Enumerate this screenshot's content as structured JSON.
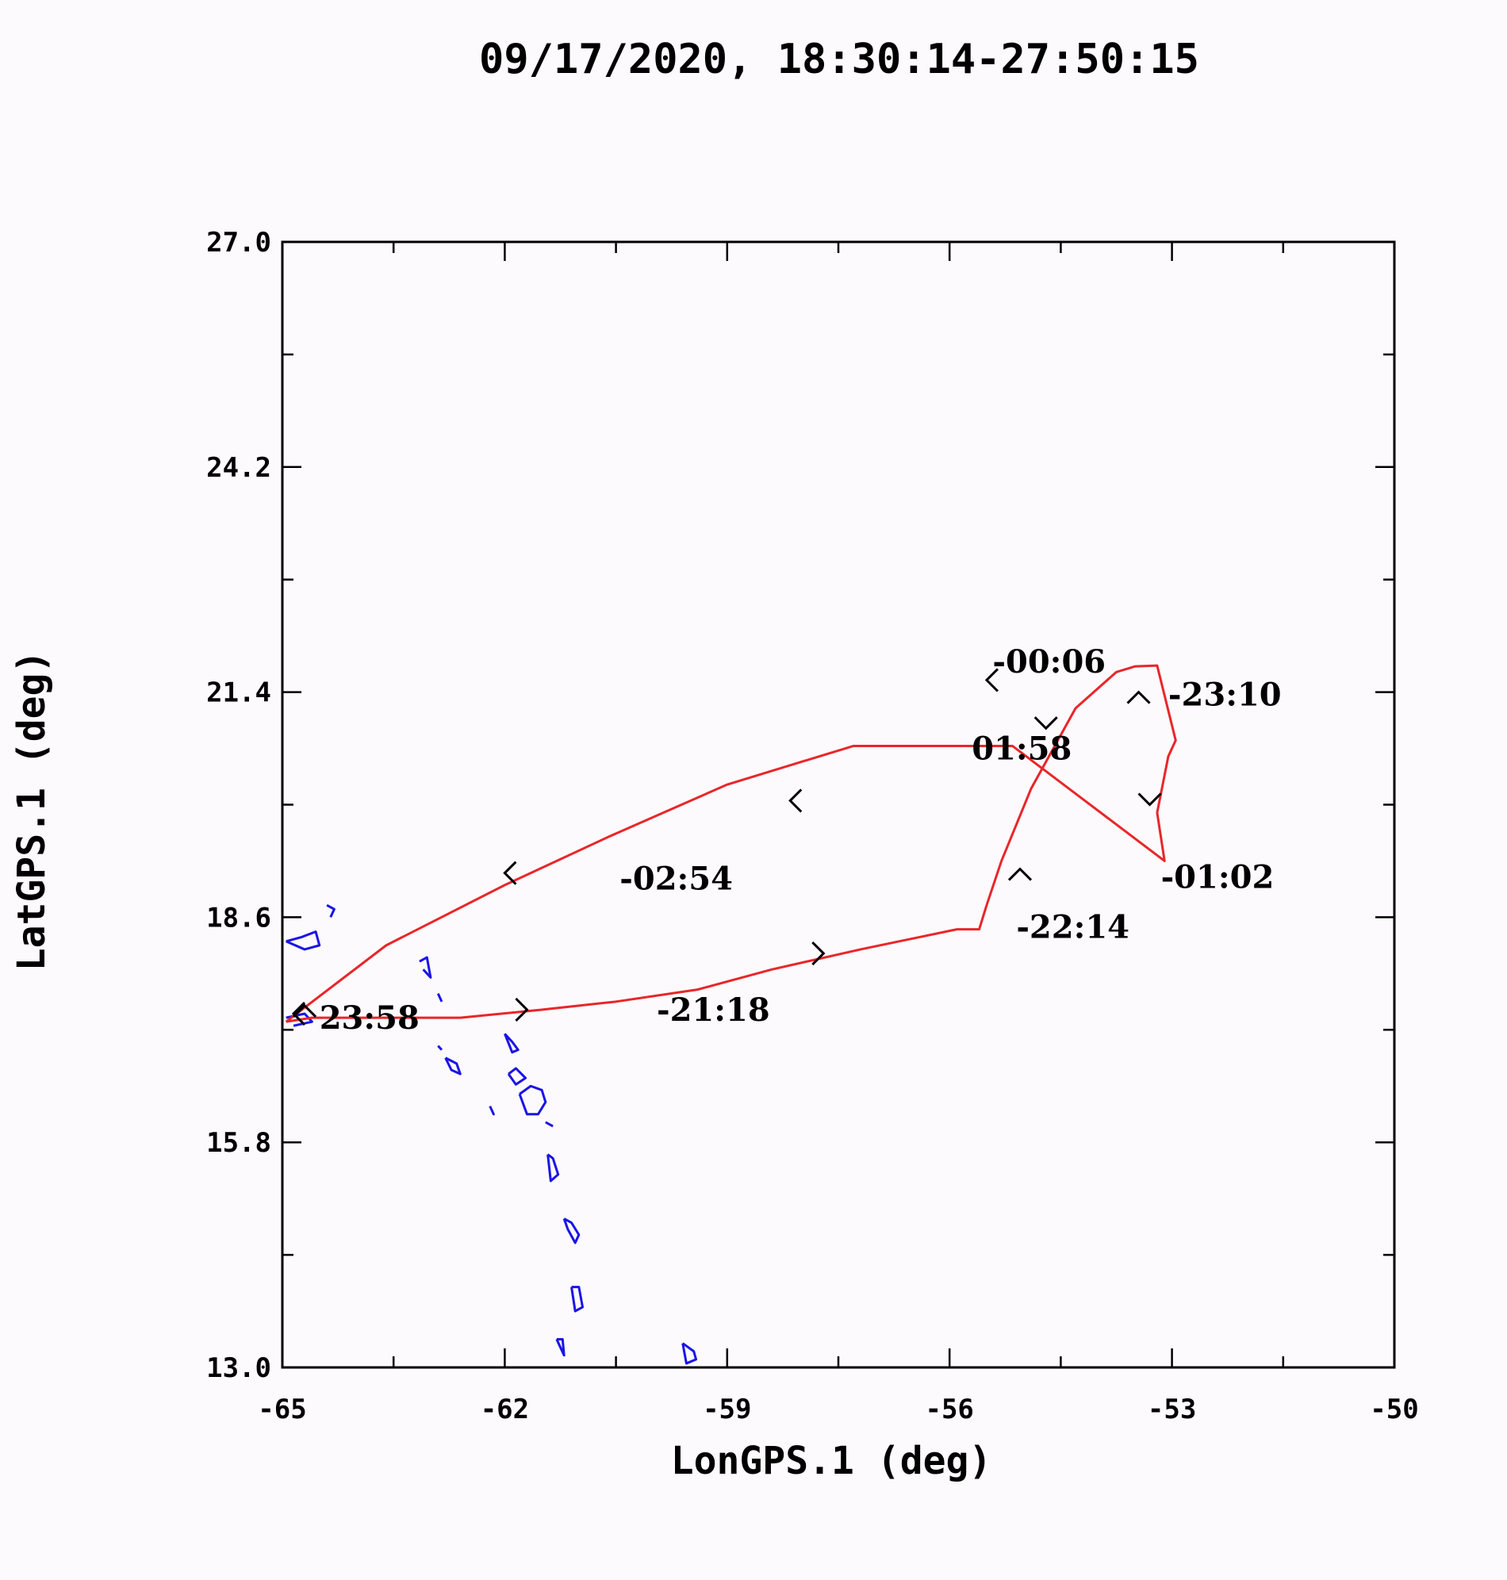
{
  "chart_data": {
    "type": "line",
    "title": "09/17/2020, 18:30:14-27:50:15",
    "xlabel": "LonGPS.1 (deg)",
    "ylabel": "LatGPS.1 (deg)",
    "xlim": [
      -65,
      -50
    ],
    "ylim": [
      13.0,
      27.0
    ],
    "xticks": [
      "-65",
      "-62",
      "-59",
      "-56",
      "-53",
      "-50"
    ],
    "xtick_values": [
      -65,
      -62,
      -59,
      -56,
      -53,
      -50
    ],
    "yticks": [
      "13.0",
      "15.8",
      "18.6",
      "21.4",
      "24.2",
      "27.0"
    ],
    "ytick_values": [
      13.0,
      15.8,
      18.6,
      21.4,
      24.2,
      27.0
    ],
    "grid": false,
    "colors": {
      "track": "#e8262a",
      "coast": "#1a14e6",
      "ink": "#000000",
      "background": "#fdfafd"
    },
    "series": [
      {
        "kind": "flight-track",
        "x": [
          -64.95,
          -64.6,
          -63.6,
          -62.6,
          -61.5,
          -60.5,
          -59.4,
          -58.4,
          -57.2,
          -55.9,
          -55.6,
          -55.5,
          -55.3,
          -54.9,
          -54.3,
          -53.75,
          -53.5,
          -53.2,
          -52.95,
          -53.05,
          -53.2,
          -53.1,
          -55.15,
          -57.3,
          -59.0,
          -60.6,
          -62.0,
          -63.6,
          -64.95
        ],
        "y": [
          17.3,
          17.35,
          17.35,
          17.35,
          17.45,
          17.55,
          17.7,
          17.95,
          18.2,
          18.45,
          18.45,
          18.75,
          19.3,
          20.2,
          21.2,
          21.65,
          21.72,
          21.73,
          20.8,
          20.6,
          19.9,
          19.3,
          20.73,
          20.73,
          20.25,
          19.6,
          19.0,
          18.25,
          17.3
        ]
      }
    ],
    "time_labels": [
      {
        "text": "-00:06",
        "x": -55.42,
        "y": 21.78
      },
      {
        "text": "-23:10",
        "x": -53.05,
        "y": 21.37
      },
      {
        "text": "01:58",
        "x": -55.7,
        "y": 20.7
      },
      {
        "text": "-01:02",
        "x": -53.15,
        "y": 19.1
      },
      {
        "text": "-22:14",
        "x": -55.1,
        "y": 18.48
      },
      {
        "text": "-02:54",
        "x": -60.45,
        "y": 19.08
      },
      {
        "text": "-21:18",
        "x": -59.95,
        "y": 17.45
      },
      {
        "text": "23:58",
        "x": -64.5,
        "y": 17.35
      }
    ],
    "direction_arrows": [
      {
        "x": -61.7,
        "y": 17.45,
        "dir": "east"
      },
      {
        "x": -57.7,
        "y": 18.15,
        "dir": "east"
      },
      {
        "x": -55.05,
        "y": 19.2,
        "dir": "north"
      },
      {
        "x": -53.45,
        "y": 21.4,
        "dir": "north"
      },
      {
        "x": -55.5,
        "y": 21.55,
        "dir": "west"
      },
      {
        "x": -54.7,
        "y": 20.95,
        "dir": "south"
      },
      {
        "x": -53.3,
        "y": 20.0,
        "dir": "south"
      },
      {
        "x": -58.15,
        "y": 20.05,
        "dir": "west"
      },
      {
        "x": -62.0,
        "y": 19.15,
        "dir": "west"
      },
      {
        "x": -64.85,
        "y": 17.4,
        "dir": "west"
      },
      {
        "x": -64.7,
        "y": 17.5,
        "dir": "north"
      }
    ],
    "coastlines": [
      {
        "x": [
          -62.0,
          -61.9,
          -61.82,
          -61.9,
          -62.0
        ],
        "y": [
          17.15,
          17.05,
          16.95,
          16.92,
          17.15
        ]
      },
      {
        "x": [
          -61.95,
          -61.85,
          -61.72,
          -61.85,
          -61.95
        ],
        "y": [
          16.65,
          16.72,
          16.6,
          16.52,
          16.65
        ]
      },
      {
        "x": [
          -62.2,
          -62.15,
          -62.2
        ],
        "y": [
          16.25,
          16.15,
          16.25
        ]
      },
      {
        "x": [
          -61.8,
          -61.65,
          -61.5,
          -61.45,
          -61.55,
          -61.7,
          -61.8
        ],
        "y": [
          16.4,
          16.5,
          16.45,
          16.3,
          16.15,
          16.15,
          16.4
        ]
      },
      {
        "x": [
          -61.42,
          -61.35,
          -61.28,
          -61.38,
          -61.42
        ],
        "y": [
          15.65,
          15.6,
          15.4,
          15.32,
          15.65
        ]
      },
      {
        "x": [
          -61.2,
          -61.1,
          -61.0,
          -61.05,
          -61.15,
          -61.2
        ],
        "y": [
          14.85,
          14.8,
          14.65,
          14.55,
          14.72,
          14.85
        ]
      },
      {
        "x": [
          -61.1,
          -61.0,
          -60.95,
          -61.05,
          -61.1
        ],
        "y": [
          14.0,
          14.0,
          13.75,
          13.7,
          14.0
        ]
      },
      {
        "x": [
          -61.3,
          -61.22,
          -61.2,
          -61.3
        ],
        "y": [
          13.35,
          13.35,
          13.15,
          13.35
        ]
      },
      {
        "x": [
          -59.6,
          -59.45,
          -59.42,
          -59.55,
          -59.6
        ],
        "y": [
          13.3,
          13.2,
          13.1,
          13.05,
          13.3
        ]
      },
      {
        "x": [
          -62.8,
          -62.65,
          -62.6,
          -62.72,
          -62.8
        ],
        "y": [
          16.85,
          16.78,
          16.65,
          16.7,
          16.85
        ]
      },
      {
        "x": [
          -62.9,
          -62.85
        ],
        "y": [
          17.0,
          16.95
        ]
      },
      {
        "x": [
          -63.15,
          -63.05,
          -63.0,
          -63.1
        ],
        "y": [
          18.05,
          18.1,
          17.85,
          17.95
        ]
      },
      {
        "x": [
          -62.9,
          -62.85
        ],
        "y": [
          17.65,
          17.55
        ]
      },
      {
        "x": [
          -64.95,
          -64.75,
          -64.55,
          -64.5,
          -64.7,
          -64.95
        ],
        "y": [
          18.3,
          18.35,
          18.42,
          18.25,
          18.2,
          18.3
        ]
      },
      {
        "x": [
          -64.4,
          -64.3,
          -64.35
        ],
        "y": [
          18.75,
          18.7,
          18.6
        ]
      },
      {
        "x": [
          -64.95,
          -64.7,
          -64.6,
          -64.85
        ],
        "y": [
          17.35,
          17.4,
          17.3,
          17.25
        ]
      },
      {
        "x": [
          -61.45,
          -61.35
        ],
        "y": [
          16.05,
          16.0
        ]
      }
    ]
  }
}
